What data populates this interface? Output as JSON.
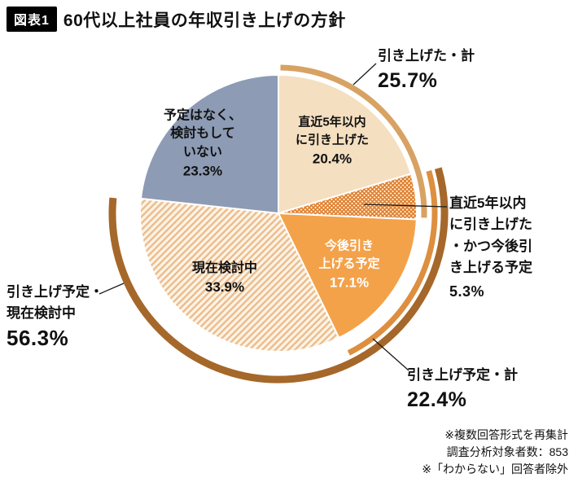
{
  "header": {
    "tag": "図表1",
    "title": "60代以上社員の年収引き上げの方針"
  },
  "chart_data": {
    "type": "pie",
    "title": "60代以上社員の年収引き上げの方針",
    "unit": "%",
    "start_angle_deg": 0,
    "direction": "clockwise",
    "segments": [
      {
        "name": "直近5年以内に引き上げた",
        "value": 20.4,
        "color": "#f4dfc0",
        "pattern": null
      },
      {
        "name": "直近5年以内に引き上げた・かつ今後引き上げる予定",
        "value": 5.3,
        "color": "#e0812f",
        "pattern": "crosshatch"
      },
      {
        "name": "今後引き上げる予定",
        "value": 17.1,
        "color": "#f3a24a",
        "pattern": null
      },
      {
        "name": "現在検討中",
        "value": 33.9,
        "color": "#fdf3e6",
        "pattern": "diagonal"
      },
      {
        "name": "予定はなく、検討もしていない",
        "value": 23.3,
        "color": "#8d9bb4",
        "pattern": null
      }
    ],
    "outer_arcs": [
      {
        "name": "引き上げた・計",
        "value": 25.7,
        "start_pct": 0,
        "end_pct": 25.7,
        "color": "#d7a263"
      },
      {
        "name": "引き上げ予定・計",
        "value": 22.4,
        "start_pct": 20.4,
        "end_pct": 42.8,
        "color": "#dd8f3f"
      },
      {
        "name": "引き上げ予定・現在検討中",
        "value": 56.3,
        "start_pct": 20.4,
        "end_pct": 76.7,
        "color": "#a5682a"
      }
    ]
  },
  "slice_labels": {
    "s1": {
      "text": "直近5年以内\nに引き上げた",
      "pct": "20.4%"
    },
    "s3": {
      "text": "今後引き\n上げる予定",
      "pct": "17.1%"
    },
    "s4": {
      "text": "現在検討中",
      "pct": "33.9%"
    },
    "s5": {
      "text": "予定はなく、\n検討もして\nいない",
      "pct": "23.3%"
    }
  },
  "callouts": {
    "raised_total": {
      "label": "引き上げた・計",
      "pct": "25.7%"
    },
    "both": {
      "label": "直近5年以内\nに引き上げた\n・かつ今後引\nき上げる予定",
      "pct": "5.3%"
    },
    "plan_total": {
      "label": "引き上げ予定・計",
      "pct": "22.4%"
    },
    "plan_or_considering": {
      "label": "引き上げ予定・\n現在検討中",
      "pct": "56.3%"
    }
  },
  "footnotes": [
    "※複数回答形式を再集計",
    "調査分析対象者数：853",
    "※「わからない」回答者除外"
  ]
}
